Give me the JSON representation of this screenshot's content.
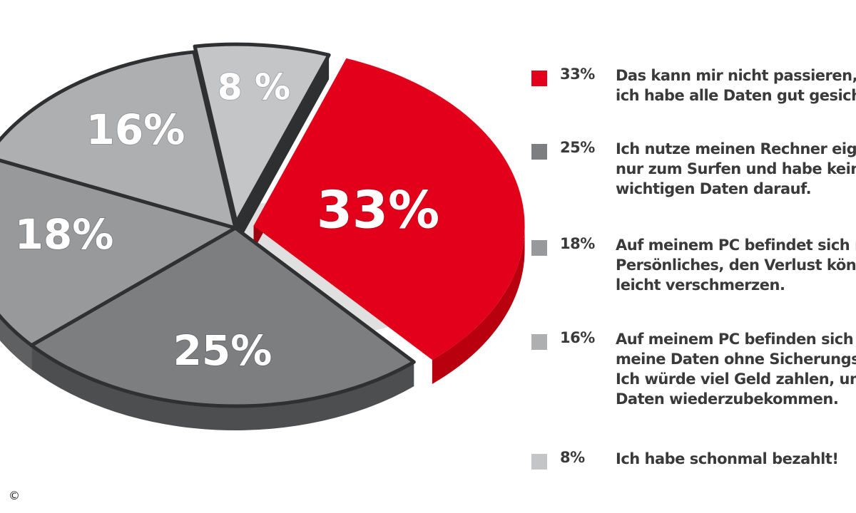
{
  "chart_data": {
    "type": "pie",
    "title": "",
    "slices": [
      {
        "label": "Das kann mir nicht passieren, denn ich habe alle Daten gut gesichert.",
        "value": 33,
        "display": "33%",
        "color": "#e2001a",
        "side": "#b8000f"
      },
      {
        "label": "Ich nutze meinen Rechner eigentlich nur zum Surfen und habe keine wichtigen Daten darauf.",
        "value": 25,
        "display": "25%",
        "color": "#7d7e80",
        "side": "#4d4e50"
      },
      {
        "label": "Auf meinem PC befindet sich nichts Persönliches, den Verlust könnte ich leicht verschmerzen.",
        "value": 18,
        "display": "18%",
        "color": "#98999b",
        "side": "#5f6062"
      },
      {
        "label": "Auf meinem PC befinden sich alle meine Daten ohne Sicherungskopie. Ich würde viel Geld zahlen, um meine Daten wiederzubekommen.",
        "value": 16,
        "display": "16%",
        "color": "#aeafb1",
        "side": "#6e6f71"
      },
      {
        "label": "Ich habe schonmal bezahlt!",
        "value": 8,
        "display": "8 %",
        "color": "#c4c5c7",
        "side": "#3b3c3e"
      }
    ]
  },
  "legend": [
    {
      "pct": "33%",
      "lines": [
        "Das kann mir nicht passieren, denn",
        "ich habe alle Daten gut gesichert."
      ]
    },
    {
      "pct": "25%",
      "lines": [
        "Ich nutze meinen Rechner eigentlich",
        "nur zum Surfen und habe keine",
        "wichtigen Daten darauf."
      ]
    },
    {
      "pct": "18%",
      "lines": [
        "Auf meinem PC befindet sich nichts",
        "Persönliches, den Verlust könnte ich",
        "leicht verschmerzen."
      ]
    },
    {
      "pct": "16%",
      "lines": [
        "Auf meinem PC befinden sich alle",
        "meine Daten ohne Sicherungskopie.",
        "Ich würde viel Geld zahlen, um meine",
        "Daten wiederzubekommen."
      ]
    },
    {
      "pct": "8%",
      "lines": [
        "Ich habe schonmal bezahlt!"
      ]
    }
  ],
  "copyright": "©"
}
